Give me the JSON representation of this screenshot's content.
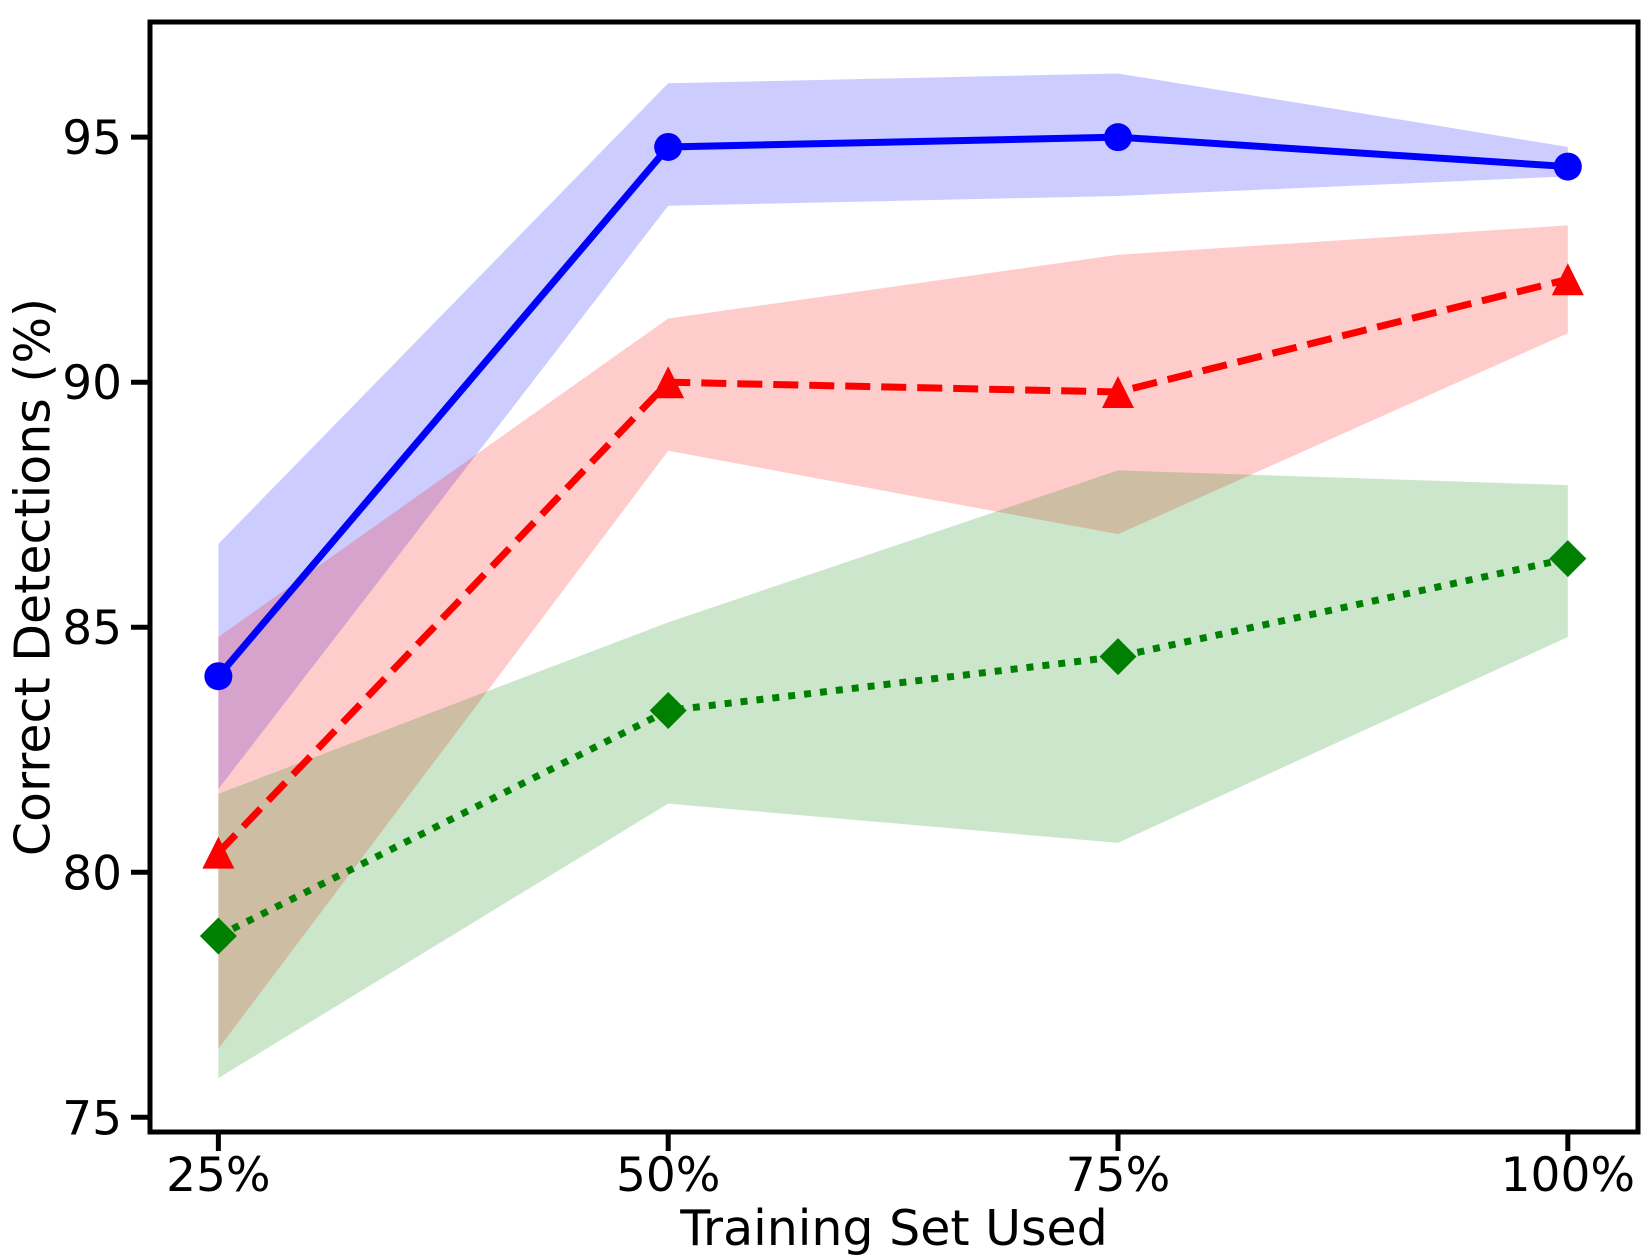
{
  "chart_data": {
    "type": "line",
    "title": "",
    "xlabel": "Training Set Used",
    "ylabel": "Correct Detections (%)",
    "x": [
      25,
      50,
      75,
      100
    ],
    "x_tick_labels": [
      "25%",
      "50%",
      "75%",
      "100%"
    ],
    "y_ticks": [
      75,
      80,
      85,
      90,
      95
    ],
    "y_tick_labels": [
      "75",
      "80",
      "85",
      "90",
      "95"
    ],
    "xlim": [
      21.2,
      103.9
    ],
    "ylim": [
      74.7,
      97.35
    ],
    "grid": false,
    "legend": "none",
    "background_color": "#ffffff",
    "axis_color": "#000000",
    "band_opacity": 0.2,
    "series": [
      {
        "id": "blue-solid-circle",
        "color": "#0000ff",
        "line_style": "solid",
        "marker": "circle",
        "values": [
          84.0,
          94.8,
          95.0,
          94.4
        ],
        "band_low": [
          81.7,
          93.6,
          93.8,
          94.2
        ],
        "band_high": [
          86.7,
          96.1,
          96.3,
          94.8
        ]
      },
      {
        "id": "red-dashed-triangle",
        "color": "#ff0000",
        "line_style": "dashed",
        "marker": "triangle-up",
        "values": [
          80.4,
          90.0,
          89.8,
          92.1
        ],
        "band_low": [
          76.4,
          88.6,
          86.9,
          91.0
        ],
        "band_high": [
          84.8,
          91.3,
          92.6,
          93.2
        ]
      },
      {
        "id": "green-dotted-diamond",
        "color": "#008000",
        "line_style": "dotted",
        "marker": "diamond",
        "values": [
          78.7,
          83.3,
          84.4,
          86.4
        ],
        "band_low": [
          75.8,
          81.4,
          80.6,
          84.8
        ],
        "band_high": [
          81.6,
          85.1,
          88.2,
          87.9
        ]
      }
    ]
  }
}
